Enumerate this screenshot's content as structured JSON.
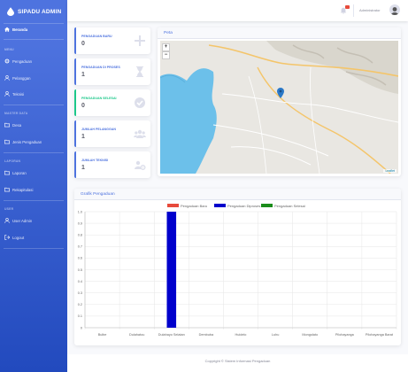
{
  "brand": {
    "title": "SIPADU ADMIN"
  },
  "sidebar": {
    "dashboard": "Beranda",
    "heading_menu": "MENU",
    "pengaduan": "Pengaduan",
    "pelanggan": "Pelanggan",
    "teknisi": "Teknisi",
    "heading_master": "MASTER DATA",
    "desa": "Desa",
    "jenis": "Jenis Pengaduan",
    "heading_laporan": "LAPORAN",
    "laporan": "Laporan",
    "rekap": "Rekapitulasi",
    "heading_user": "USER",
    "user_admin": "User Admin",
    "logout": "Logout"
  },
  "topbar": {
    "username": "Administrator",
    "notification_count": ""
  },
  "cards": [
    {
      "label": "PENGADUAN BARU",
      "value": "0",
      "color": "#4e73df",
      "icon": "plus-icon"
    },
    {
      "label": "PENGADUAN DI PROSES",
      "value": "1",
      "color": "#4e73df",
      "icon": "hourglass-icon"
    },
    {
      "label": "PENGADUAN SELESAI",
      "value": "0",
      "color": "#1cc88a",
      "icon": "check-circle-icon"
    },
    {
      "label": "JUMLAH PELANGGAN",
      "value": "1",
      "color": "#4e73df",
      "icon": "users-icon"
    },
    {
      "label": "JUMLAH TEKNISI",
      "value": "1",
      "color": "#4e73df",
      "icon": "users-cog-icon"
    }
  ],
  "map": {
    "title": "Peta",
    "zoom_in": "+",
    "zoom_out": "−",
    "attribution": "Leaflet"
  },
  "chart_panel": {
    "title": "Grafik Pengaduan"
  },
  "chart_data": {
    "type": "bar",
    "categories": [
      "Bulbe",
      "Dulahatou",
      "Dulahayo Selatan",
      "Dembuba",
      "Huidelo",
      "Luhu",
      "Mongolato",
      "Pilohayanga",
      "Pilohayanga Barat"
    ],
    "series": [
      {
        "name": "Pengaduan Baru",
        "color": "#e74a3b",
        "values": [
          0,
          0,
          0,
          0,
          0,
          0,
          0,
          0,
          0
        ]
      },
      {
        "name": "Pengaduan Diproses",
        "color": "#0000cc",
        "values": [
          0,
          0,
          1,
          0,
          0,
          0,
          0,
          0,
          0
        ]
      },
      {
        "name": "Pengaduan Selesai",
        "color": "#1a8c1a",
        "values": [
          0,
          0,
          0,
          0,
          0,
          0,
          0,
          0,
          0
        ]
      }
    ],
    "ylim": [
      0,
      1
    ],
    "yticks": [
      "1.0",
      "0.9",
      "0.8",
      "0.7",
      "0.6",
      "0.5",
      "0.4",
      "0.3",
      "0.2",
      "0.1",
      "0"
    ],
    "grid": true,
    "legend": "top-center"
  },
  "footer": {
    "copyright": "Copyright © Sistem Informasi Pengaduan"
  }
}
